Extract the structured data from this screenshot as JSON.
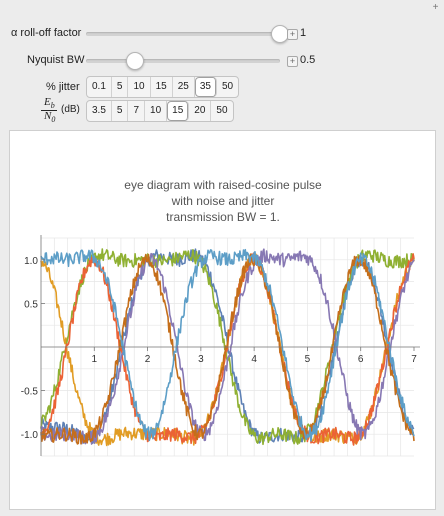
{
  "controls": {
    "rolloff": {
      "label": "α roll-off factor",
      "value": 1,
      "value_text": "1",
      "min": 0,
      "max": 1
    },
    "nyquist": {
      "label": "Nyquist BW",
      "value": 0.5,
      "value_text": "0.5",
      "min": 0,
      "max": 2
    },
    "jitter": {
      "label": "% jitter",
      "options": [
        "0.1",
        "5",
        "10",
        "15",
        "25",
        "35",
        "50"
      ],
      "selected": "35"
    },
    "ebn0": {
      "label_num": "E",
      "label_num_sub": "b",
      "label_den": "N",
      "label_den_sub": "0",
      "label_unit": "(dB)",
      "options": [
        "3.5",
        "5",
        "7",
        "10",
        "15",
        "20",
        "50"
      ],
      "selected": "15"
    }
  },
  "chart_data": {
    "type": "line",
    "title": "eye diagram with raised-cosine pulse\nwith noise and jitter\ntransmission BW = 1.",
    "title_lines": [
      "eye diagram with raised-cosine pulse",
      "with noise and jitter",
      "transmission BW = 1."
    ],
    "xlabel": "",
    "ylabel": "",
    "xlim": [
      0,
      7
    ],
    "ylim": [
      -1.25,
      1.25
    ],
    "x_ticks": [
      1,
      2,
      3,
      4,
      5,
      6,
      7
    ],
    "x_tick_labels": [
      "1",
      "2",
      "3",
      "4",
      "5",
      "6",
      "7"
    ],
    "y_ticks": [
      -1.0,
      -0.5,
      0.5,
      1.0
    ],
    "y_tick_labels": [
      "-1.0",
      "-0.5",
      "0.5",
      "1.0"
    ],
    "grid": true,
    "noise_amplitude": 0.08,
    "series": [
      {
        "color": "#5e81b5",
        "values": [
          -0.9,
          -1.0,
          1.0,
          1.0,
          -1.0,
          -1.0,
          1.0,
          -1.0,
          -1.0
        ]
      },
      {
        "color": "#e19c24",
        "values": [
          1.0,
          -1.0,
          -1.0,
          -1.0,
          1.0,
          -1.0,
          -1.0,
          1.0,
          1.0
        ]
      },
      {
        "color": "#8fb032",
        "values": [
          -0.9,
          1.0,
          1.0,
          1.0,
          -1.0,
          -1.0,
          1.0,
          1.0,
          1.0
        ]
      },
      {
        "color": "#eb6235",
        "values": [
          -1.0,
          1.0,
          -1.0,
          -1.0,
          1.0,
          -1.0,
          -1.0,
          1.0,
          1.0
        ]
      },
      {
        "color": "#8778b3",
        "values": [
          -1.0,
          -1.0,
          1.0,
          -1.0,
          1.0,
          1.0,
          -1.0,
          1.0,
          1.0
        ]
      },
      {
        "color": "#c56e1a",
        "values": [
          -1.0,
          -1.0,
          1.0,
          -1.0,
          1.0,
          -1.0,
          1.0,
          -1.0,
          -1.0
        ]
      },
      {
        "color": "#5d9ec7",
        "values": [
          1.0,
          1.0,
          -1.0,
          1.0,
          1.0,
          -1.0,
          1.0,
          -1.0,
          -1.0
        ]
      }
    ]
  }
}
